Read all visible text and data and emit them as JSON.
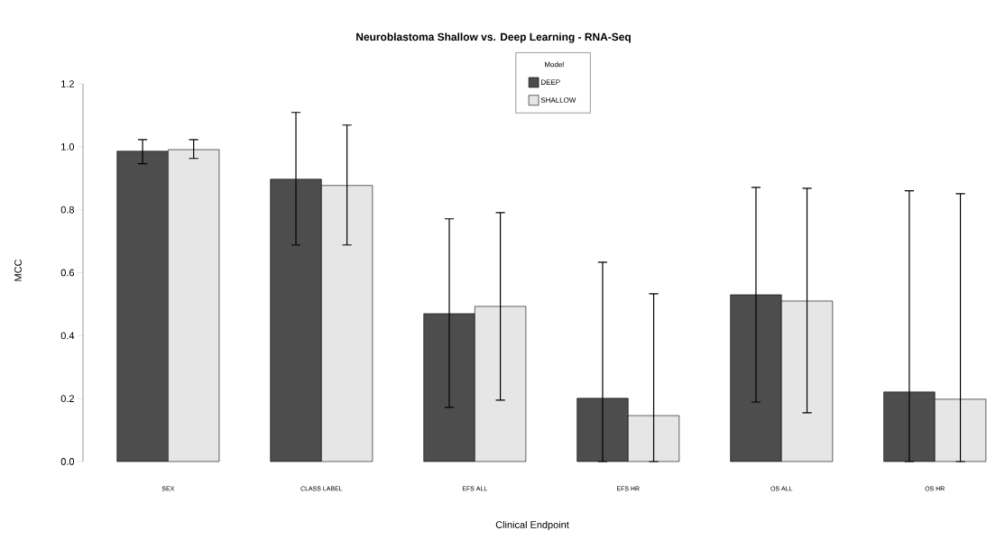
{
  "chart_data": {
    "type": "bar",
    "title": "Neuroblastoma Shallow vs. Deep Learning - RNA-Seq",
    "xlabel": "Clinical Endpoint",
    "ylabel": "MCC",
    "legend_title": "Model",
    "legend": "top",
    "categories": [
      "SEX",
      "CLASS LABEL",
      "EFS ALL",
      "EFS HR",
      "OS ALL",
      "OS HR"
    ],
    "series": [
      {
        "name": "DEEP",
        "color": "#4d4d4d",
        "values": [
          0.986,
          0.897,
          0.47,
          0.201,
          0.53,
          0.221
        ],
        "errors": [
          [
            0.946,
            1.023
          ],
          [
            0.688,
            1.109
          ],
          [
            0.172,
            0.771
          ],
          [
            0,
            0.633
          ],
          [
            0.189,
            0.871
          ],
          [
            0,
            0.86
          ]
        ]
      },
      {
        "name": "SHALLOW",
        "color": "#e6e6e6",
        "values": [
          0.991,
          0.877,
          0.493,
          0.146,
          0.51,
          0.198
        ],
        "errors": [
          [
            0.963,
            1.023
          ],
          [
            0.688,
            1.069
          ],
          [
            0.195,
            0.791
          ],
          [
            0,
            0.533
          ],
          [
            0.155,
            0.868
          ],
          [
            0,
            0.851
          ]
        ]
      }
    ],
    "ylim": [
      0,
      1.2
    ],
    "yticks": [
      {
        "value": 0,
        "label": "0.0"
      },
      {
        "value": 0.2,
        "label": "0.2"
      },
      {
        "value": 0.4,
        "label": "0.4"
      },
      {
        "value": 0.6,
        "label": "0.6"
      },
      {
        "value": 0.8,
        "label": "0.8"
      },
      {
        "value": 1.0,
        "label": "1.0"
      },
      {
        "value": 1.2,
        "label": "1.2"
      }
    ]
  }
}
